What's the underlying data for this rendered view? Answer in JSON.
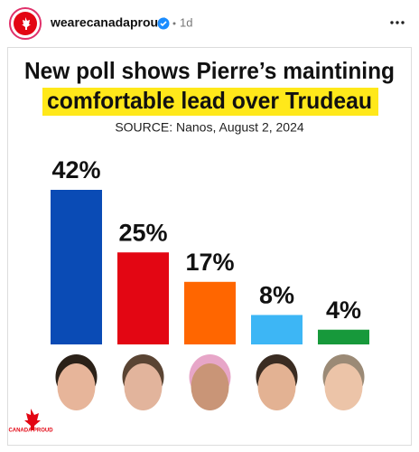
{
  "post": {
    "username": "wearecanadaproud",
    "time": "1d",
    "logo_text": "CANADA PROUD"
  },
  "chart_data": {
    "type": "bar",
    "title": [
      "New poll shows Pierre’s maintining",
      "comfortable lead over Trudeau"
    ],
    "subtitle": "SOURCE: Nanos, August 2, 2024",
    "values": [
      42,
      25,
      17,
      8,
      4
    ],
    "value_labels": [
      "42%",
      "25%",
      "17%",
      "8%",
      "4%"
    ],
    "colors": [
      "#0a4bb5",
      "#e30613",
      "#ff6600",
      "#3db6f5",
      "#17993b"
    ]
  }
}
